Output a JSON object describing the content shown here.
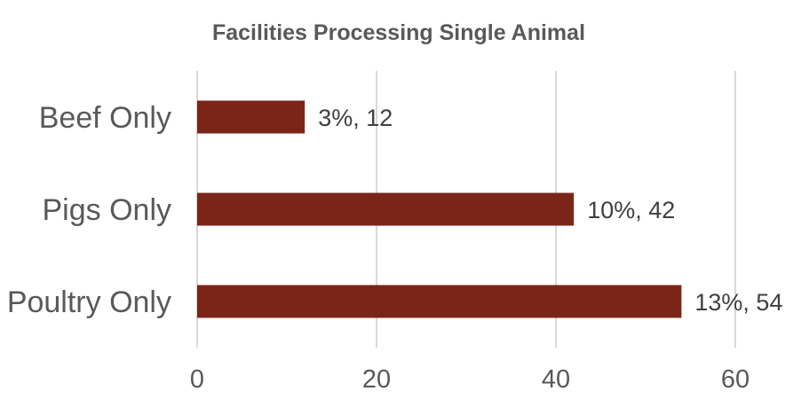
{
  "chart_data": {
    "type": "bar",
    "orientation": "horizontal",
    "title": "Facilities Processing Single Animal",
    "categories": [
      "Beef Only",
      "Pigs Only",
      "Poultry Only"
    ],
    "values": [
      12,
      42,
      54
    ],
    "data_labels": [
      "3%, 12",
      "10%, 42",
      "13%, 54"
    ],
    "xlim": [
      0,
      60
    ],
    "xticks": [
      0,
      20,
      40,
      60
    ],
    "xtick_labels": [
      "0",
      "20",
      "40",
      "60"
    ],
    "xlabel": "",
    "ylabel": "",
    "grid": "vertical",
    "legend": "none",
    "bar_color": "#7a2518",
    "gridline_color": "#d9d9d9",
    "text_color": "#595959"
  }
}
